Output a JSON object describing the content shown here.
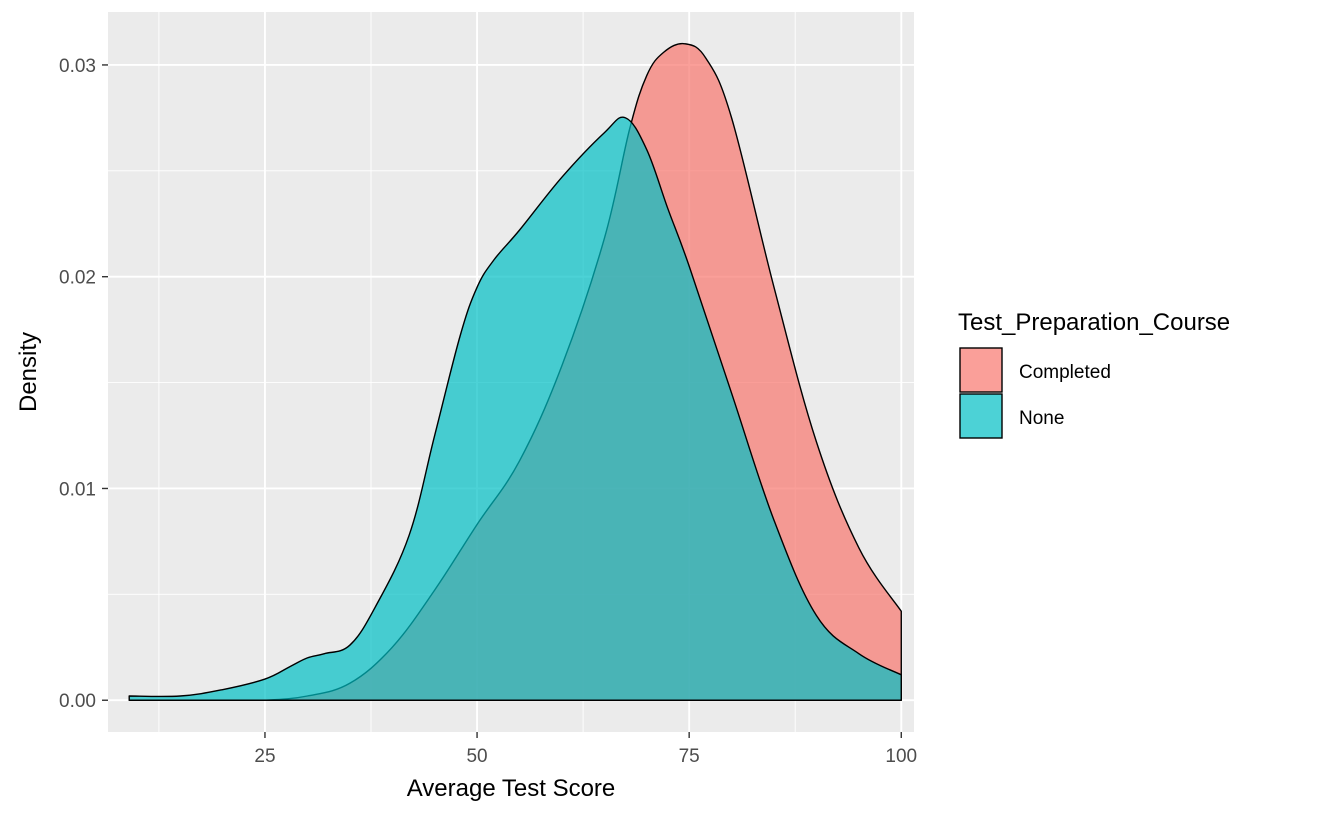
{
  "chart_data": {
    "type": "area",
    "subtype": "density",
    "xlabel": "Average Test Score",
    "ylabel": "Density",
    "xlim": [
      6.5,
      101.5
    ],
    "ylim": [
      -0.0015,
      0.0325
    ],
    "x_ticks": [
      25,
      50,
      75,
      100
    ],
    "y_ticks": [
      0.0,
      0.01,
      0.02,
      0.03
    ],
    "x_tick_labels": [
      "25",
      "50",
      "75",
      "100"
    ],
    "y_tick_labels": [
      "0.00",
      "0.01",
      "0.02",
      "0.03"
    ],
    "grid": true,
    "legend": {
      "title": "Test_Preparation_Course",
      "position": "right"
    },
    "series": [
      {
        "name": "Completed",
        "color": "#F8766D",
        "x": [
          9,
          15,
          20,
          25,
          30,
          35,
          40,
          45,
          50,
          55,
          60,
          65,
          68,
          70,
          72,
          74.5,
          77,
          80,
          85,
          90,
          95,
          100
        ],
        "y": [
          0.0,
          0.0,
          0.0,
          0.0,
          0.0002,
          0.0008,
          0.0025,
          0.0052,
          0.0083,
          0.0113,
          0.0158,
          0.0218,
          0.027,
          0.0295,
          0.0306,
          0.031,
          0.0303,
          0.0275,
          0.0195,
          0.0122,
          0.0072,
          0.0042
        ]
      },
      {
        "name": "None",
        "color": "#00BFC4",
        "x": [
          9,
          15,
          20,
          25,
          28,
          30,
          32,
          35,
          38,
          42,
          45,
          48,
          50,
          52,
          55,
          60,
          65,
          67.5,
          70,
          72.5,
          75,
          80,
          85,
          90,
          95,
          100
        ],
        "y": [
          0.0002,
          0.0002,
          0.0005,
          0.001,
          0.0016,
          0.002,
          0.0022,
          0.0026,
          0.0044,
          0.0078,
          0.0125,
          0.0172,
          0.0195,
          0.0208,
          0.0222,
          0.0247,
          0.0268,
          0.0275,
          0.026,
          0.0232,
          0.0205,
          0.0145,
          0.0085,
          0.004,
          0.0022,
          0.0012
        ]
      }
    ]
  }
}
